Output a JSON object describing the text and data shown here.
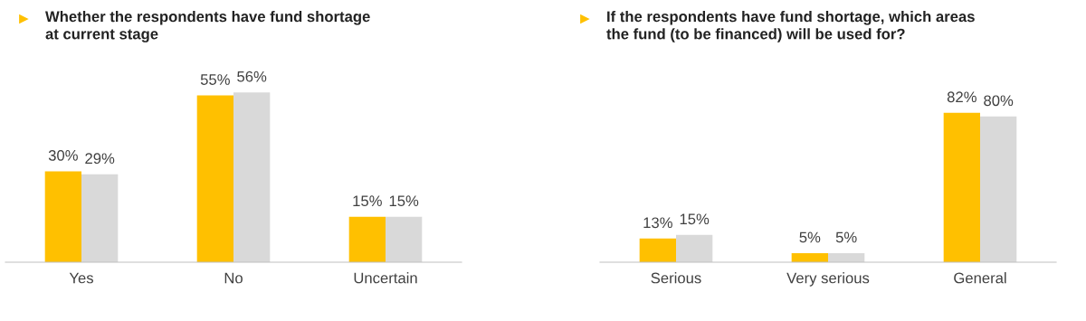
{
  "chart_data": [
    {
      "type": "bar",
      "title": "Whether the respondents have fund shortage\nat current stage",
      "categories": [
        "Yes",
        "No",
        "Uncertain"
      ],
      "series": [
        {
          "color": "#ffc000",
          "values": [
            30,
            55,
            15
          ],
          "value_labels": [
            "30%",
            "55%",
            "15%"
          ]
        },
        {
          "color": "#d9d9d9",
          "values": [
            29,
            56,
            15
          ],
          "value_labels": [
            "29%",
            "56%",
            "15%"
          ]
        }
      ],
      "legend": false,
      "grid": false
    },
    {
      "type": "bar",
      "title": "If the respondents have fund shortage, which areas\nthe fund (to be financed) will be used for?",
      "categories": [
        "Serious",
        "Very serious",
        "General"
      ],
      "series": [
        {
          "color": "#ffc000",
          "values": [
            13,
            5,
            82
          ],
          "value_labels": [
            "13%",
            "5%",
            "82%"
          ]
        },
        {
          "color": "#d9d9d9",
          "values": [
            15,
            5,
            80
          ],
          "value_labels": [
            "15%",
            "5%",
            "80%"
          ]
        }
      ],
      "legend": false,
      "grid": false
    }
  ]
}
